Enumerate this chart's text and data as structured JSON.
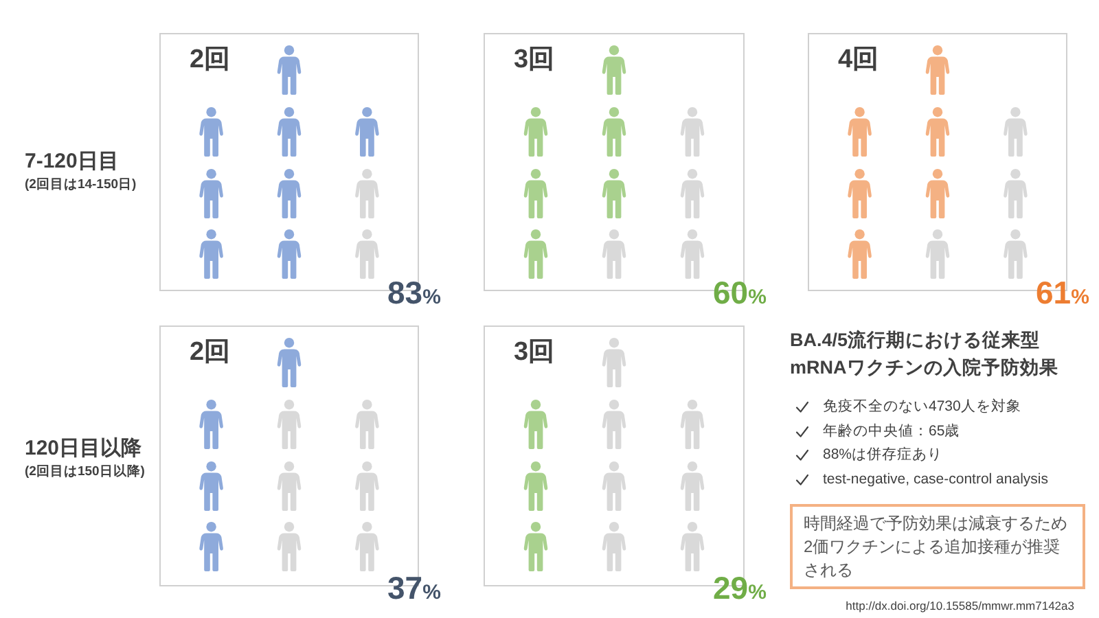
{
  "chart_data": [
    {
      "type": "other",
      "title": "7-120日目",
      "subtitle": "(2回目は14-150日)"
    },
    {
      "type": "other",
      "title": "2回",
      "values": [
        83
      ],
      "value_labels": [
        "83%"
      ],
      "color": "#44546a",
      "colors": [
        "#8eaadb"
      ]
    },
    {
      "type": "other",
      "title": "3回",
      "values": [
        60
      ],
      "value_labels": [
        "60%"
      ],
      "color": "#70ad47",
      "colors": [
        "#a9d18e"
      ]
    },
    {
      "type": "other",
      "title": "4回",
      "values": [
        61
      ],
      "value_labels": [
        "61%"
      ],
      "color": "#ed7d31",
      "colors": [
        "#f4b183"
      ]
    },
    {
      "type": "other",
      "title": "120日目以降",
      "subtitle": "(2回目は150日以降)"
    },
    {
      "type": "other",
      "title": "2回",
      "values": [
        37
      ],
      "value_labels": [
        "37%"
      ],
      "color": "#44546a",
      "colors": [
        "#8eaadb"
      ]
    },
    {
      "type": "other",
      "title": "3回",
      "values": [
        29
      ],
      "value_labels": [
        "29%"
      ],
      "color": "#70ad47",
      "colors": [
        "#a9d18e"
      ]
    },
    {
      "type": "other",
      "title": "BA.4/5流行期における従来型mRNAワクチンの入院予防効果",
      "annotations": [
        "免疫不全のない4730人を対象",
        "年齢の中央値：65歳",
        "88%は併存症あり",
        "test-negative, case-control analysis",
        "時間経過で予防効果は減衰するため2価ワクチンによる追加接種が推奨される",
        "http://dx.doi.org/10.15585/mmwr.mm7142a3"
      ]
    }
  ]
}
